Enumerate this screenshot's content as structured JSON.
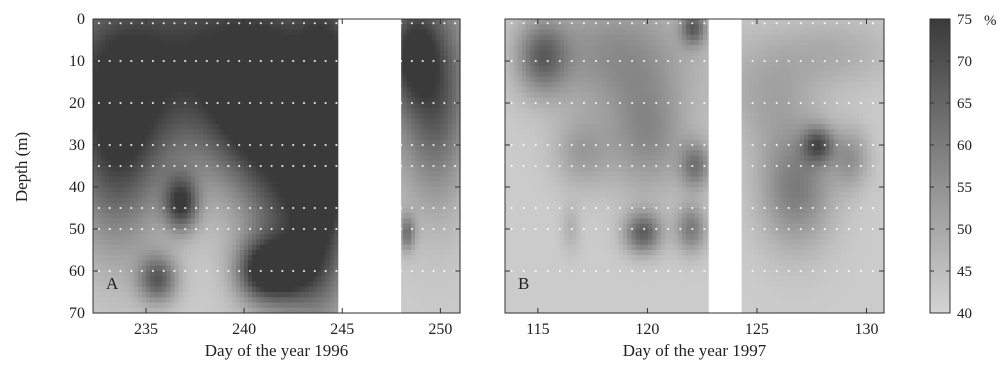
{
  "chart_data": {
    "type": "heatmap",
    "ylabel": "Depth (m)",
    "colorbar": {
      "ticks": [
        75,
        70,
        65,
        60,
        55,
        50,
        45,
        40
      ],
      "unit": "%",
      "range": [
        40,
        75
      ],
      "color_low": "#d4d4d4",
      "color_high": "#3a3a3a"
    },
    "panels": [
      {
        "label": "A",
        "xlabel": "Day of the year 1996",
        "xlim": [
          232.3,
          251.0
        ],
        "xticks": [
          235,
          240,
          245,
          250
        ],
        "ylim": [
          0,
          70
        ],
        "yticks": [
          0,
          10,
          20,
          30,
          40,
          50,
          60,
          70
        ],
        "gap": [
          244.8,
          248.0
        ],
        "background_value": 42,
        "blobs": [
          {
            "x": 238.5,
            "y": 10,
            "sx": 6.5,
            "sy": 18,
            "v": 33
          },
          {
            "x": 233.5,
            "y": 30,
            "sx": 1.6,
            "sy": 18,
            "v": 24
          },
          {
            "x": 240.5,
            "y": 22,
            "sx": 1.5,
            "sy": 12,
            "v": 18
          },
          {
            "x": 236.8,
            "y": 44,
            "sx": 0.6,
            "sy": 4.5,
            "v": 28
          },
          {
            "x": 235.6,
            "y": 62,
            "sx": 0.7,
            "sy": 4,
            "v": 24
          },
          {
            "x": 240.8,
            "y": 60,
            "sx": 0.9,
            "sy": 5,
            "v": 26
          },
          {
            "x": 242.5,
            "y": 45,
            "sx": 1.6,
            "sy": 18,
            "v": 24
          },
          {
            "x": 244.2,
            "y": 33,
            "sx": 1.0,
            "sy": 24,
            "v": 26
          },
          {
            "x": 242.3,
            "y": 60,
            "sx": 1.0,
            "sy": 5,
            "v": 20
          },
          {
            "x": 249.8,
            "y": 18,
            "sx": 1.2,
            "sy": 18,
            "v": 22
          },
          {
            "x": 248.3,
            "y": 51,
            "sx": 0.3,
            "sy": 3,
            "v": 18
          },
          {
            "x": 248.6,
            "y": 8,
            "sx": 0.8,
            "sy": 8,
            "v": 18
          }
        ]
      },
      {
        "label": "B",
        "xlabel": "Day of the year 1997",
        "xlim": [
          113.5,
          130.8
        ],
        "xticks": [
          115,
          120,
          125,
          130
        ],
        "ylim": [
          0,
          70
        ],
        "yticks": [
          0,
          10,
          20,
          30,
          40,
          50,
          60,
          70
        ],
        "gap": [
          122.8,
          124.3
        ],
        "background_value": 42,
        "blobs": [
          {
            "x": 115.2,
            "y": 9,
            "sx": 0.8,
            "sy": 6,
            "v": 20
          },
          {
            "x": 118.5,
            "y": 8,
            "sx": 2.5,
            "sy": 10,
            "v": 14
          },
          {
            "x": 120.0,
            "y": 28,
            "sx": 1.3,
            "sy": 10,
            "v": 14
          },
          {
            "x": 117.0,
            "y": 32,
            "sx": 0.9,
            "sy": 6,
            "v": 10
          },
          {
            "x": 122.2,
            "y": 35,
            "sx": 0.5,
            "sy": 4,
            "v": 18
          },
          {
            "x": 122.1,
            "y": 2,
            "sx": 0.4,
            "sy": 3,
            "v": 22
          },
          {
            "x": 119.8,
            "y": 51,
            "sx": 0.6,
            "sy": 3.5,
            "v": 24
          },
          {
            "x": 122.0,
            "y": 50,
            "sx": 0.5,
            "sy": 4,
            "v": 18
          },
          {
            "x": 126.8,
            "y": 40,
            "sx": 1.2,
            "sy": 10,
            "v": 18
          },
          {
            "x": 127.8,
            "y": 30,
            "sx": 0.5,
            "sy": 3,
            "v": 22
          },
          {
            "x": 129.3,
            "y": 33,
            "sx": 0.6,
            "sy": 5,
            "v": 12
          },
          {
            "x": 125.5,
            "y": 18,
            "sx": 1.5,
            "sy": 9,
            "v": 8
          },
          {
            "x": 128.5,
            "y": 8,
            "sx": 2.0,
            "sy": 6,
            "v": 7
          },
          {
            "x": 116.5,
            "y": 50,
            "sx": 0.3,
            "sy": 4,
            "v": 6
          }
        ]
      }
    ]
  }
}
